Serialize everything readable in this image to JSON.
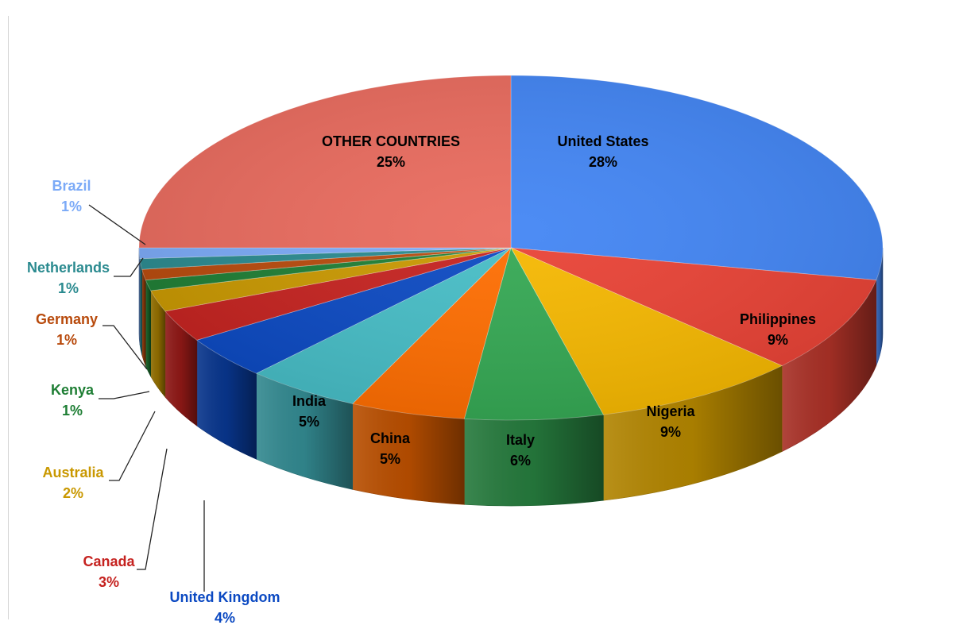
{
  "chart_data": {
    "type": "pie",
    "style": "3d-exploded-tilted",
    "slices": [
      {
        "label": "United States",
        "pct_text": "28%",
        "value": 28,
        "color": "#4285F4"
      },
      {
        "label": "Philippines",
        "pct_text": "9%",
        "value": 9,
        "color": "#E94235"
      },
      {
        "label": "Nigeria",
        "pct_text": "9%",
        "value": 9,
        "color": "#F6B800"
      },
      {
        "label": "Italy",
        "pct_text": "6%",
        "value": 6,
        "color": "#34A853"
      },
      {
        "label": "China",
        "pct_text": "5%",
        "value": 5,
        "color": "#FF6D00"
      },
      {
        "label": "India",
        "pct_text": "5%",
        "value": 5,
        "color": "#46BDC6"
      },
      {
        "label": "United Kingdom",
        "pct_text": "4%",
        "value": 4,
        "color": "#0B49C2"
      },
      {
        "label": "Canada",
        "pct_text": "3%",
        "value": 3,
        "color": "#C5221F"
      },
      {
        "label": "Australia",
        "pct_text": "2%",
        "value": 2,
        "color": "#C99800"
      },
      {
        "label": "Kenya",
        "pct_text": "1%",
        "value": 1,
        "color": "#1E7E34"
      },
      {
        "label": "Germany",
        "pct_text": "1%",
        "value": 1,
        "color": "#B84A0C"
      },
      {
        "label": "Netherlands",
        "pct_text": "1%",
        "value": 1,
        "color": "#2A8A8F"
      },
      {
        "label": "Brazil",
        "pct_text": "1%",
        "value": 1,
        "color": "#7BAAF7"
      },
      {
        "label": "OTHER COUNTRIES",
        "pct_text": "25%",
        "value": 25,
        "color": "#EA6B5E"
      }
    ]
  }
}
